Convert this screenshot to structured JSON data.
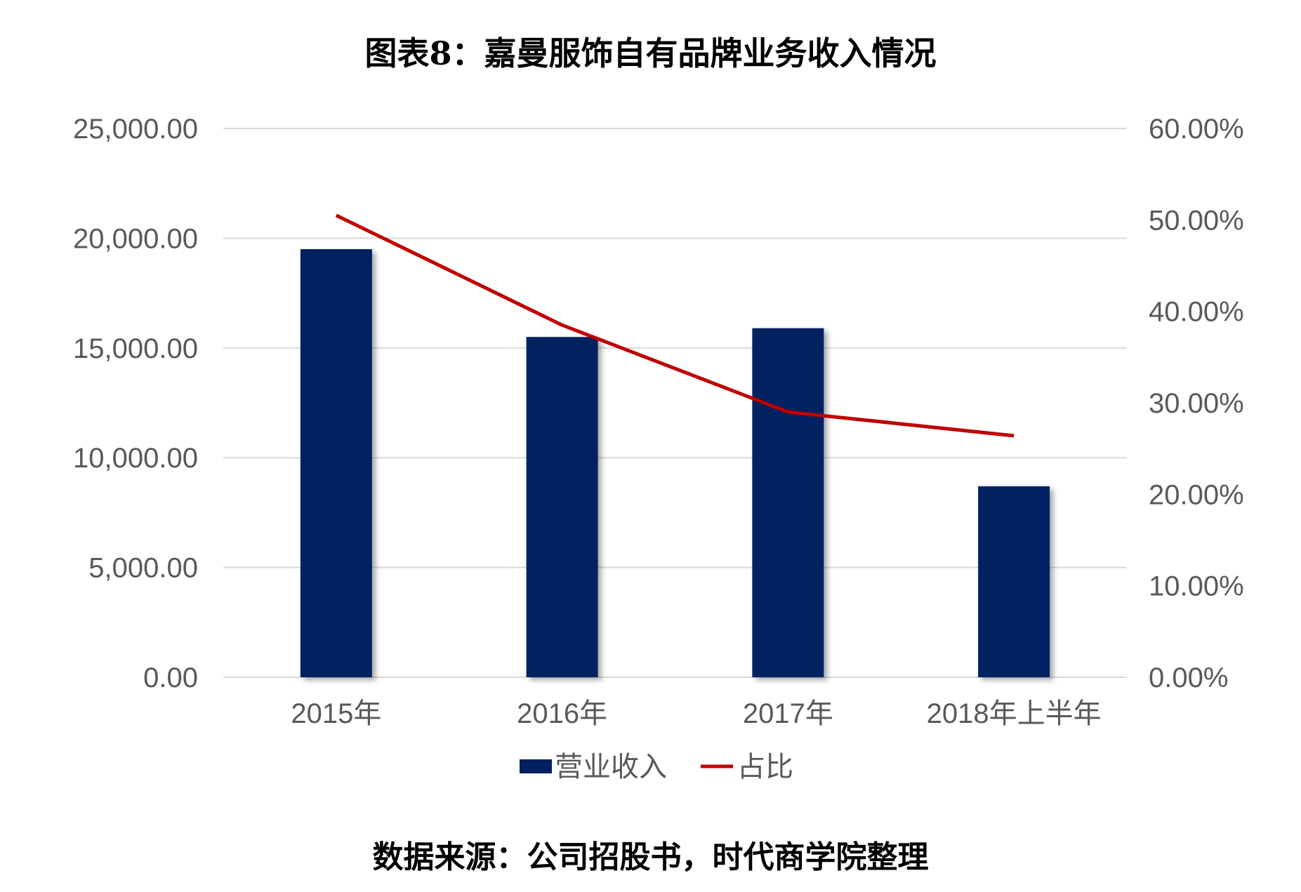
{
  "title": "图表8：嘉曼服饰自有品牌业务收入情况",
  "source": "数据来源：公司招股书，时代商学院整理",
  "colors": {
    "bar": "#002060",
    "line": "#C00000",
    "grid": "#D9D9D9",
    "text": "#595959"
  },
  "chart_data": {
    "type": "bar",
    "categories": [
      "2015年",
      "2016年",
      "2017年",
      "2018年上半年"
    ],
    "series": [
      {
        "name": "营业收入",
        "type": "bar",
        "axis": "left",
        "values": [
          19500,
          15500,
          15900,
          8700
        ]
      },
      {
        "name": "占比",
        "type": "line",
        "axis": "right",
        "values": [
          0.505,
          0.385,
          0.29,
          0.264
        ]
      }
    ],
    "yAxisLeft": {
      "min": 0,
      "max": 25000,
      "ticks": [
        "0.00",
        "5,000.00",
        "10,000.00",
        "15,000.00",
        "20,000.00",
        "25,000.00"
      ]
    },
    "yAxisRight": {
      "min": 0,
      "max": 0.6,
      "ticks": [
        "0.00%",
        "10.00%",
        "20.00%",
        "30.00%",
        "40.00%",
        "50.00%",
        "60.00%"
      ]
    },
    "grid": true,
    "legend": "bottom"
  }
}
